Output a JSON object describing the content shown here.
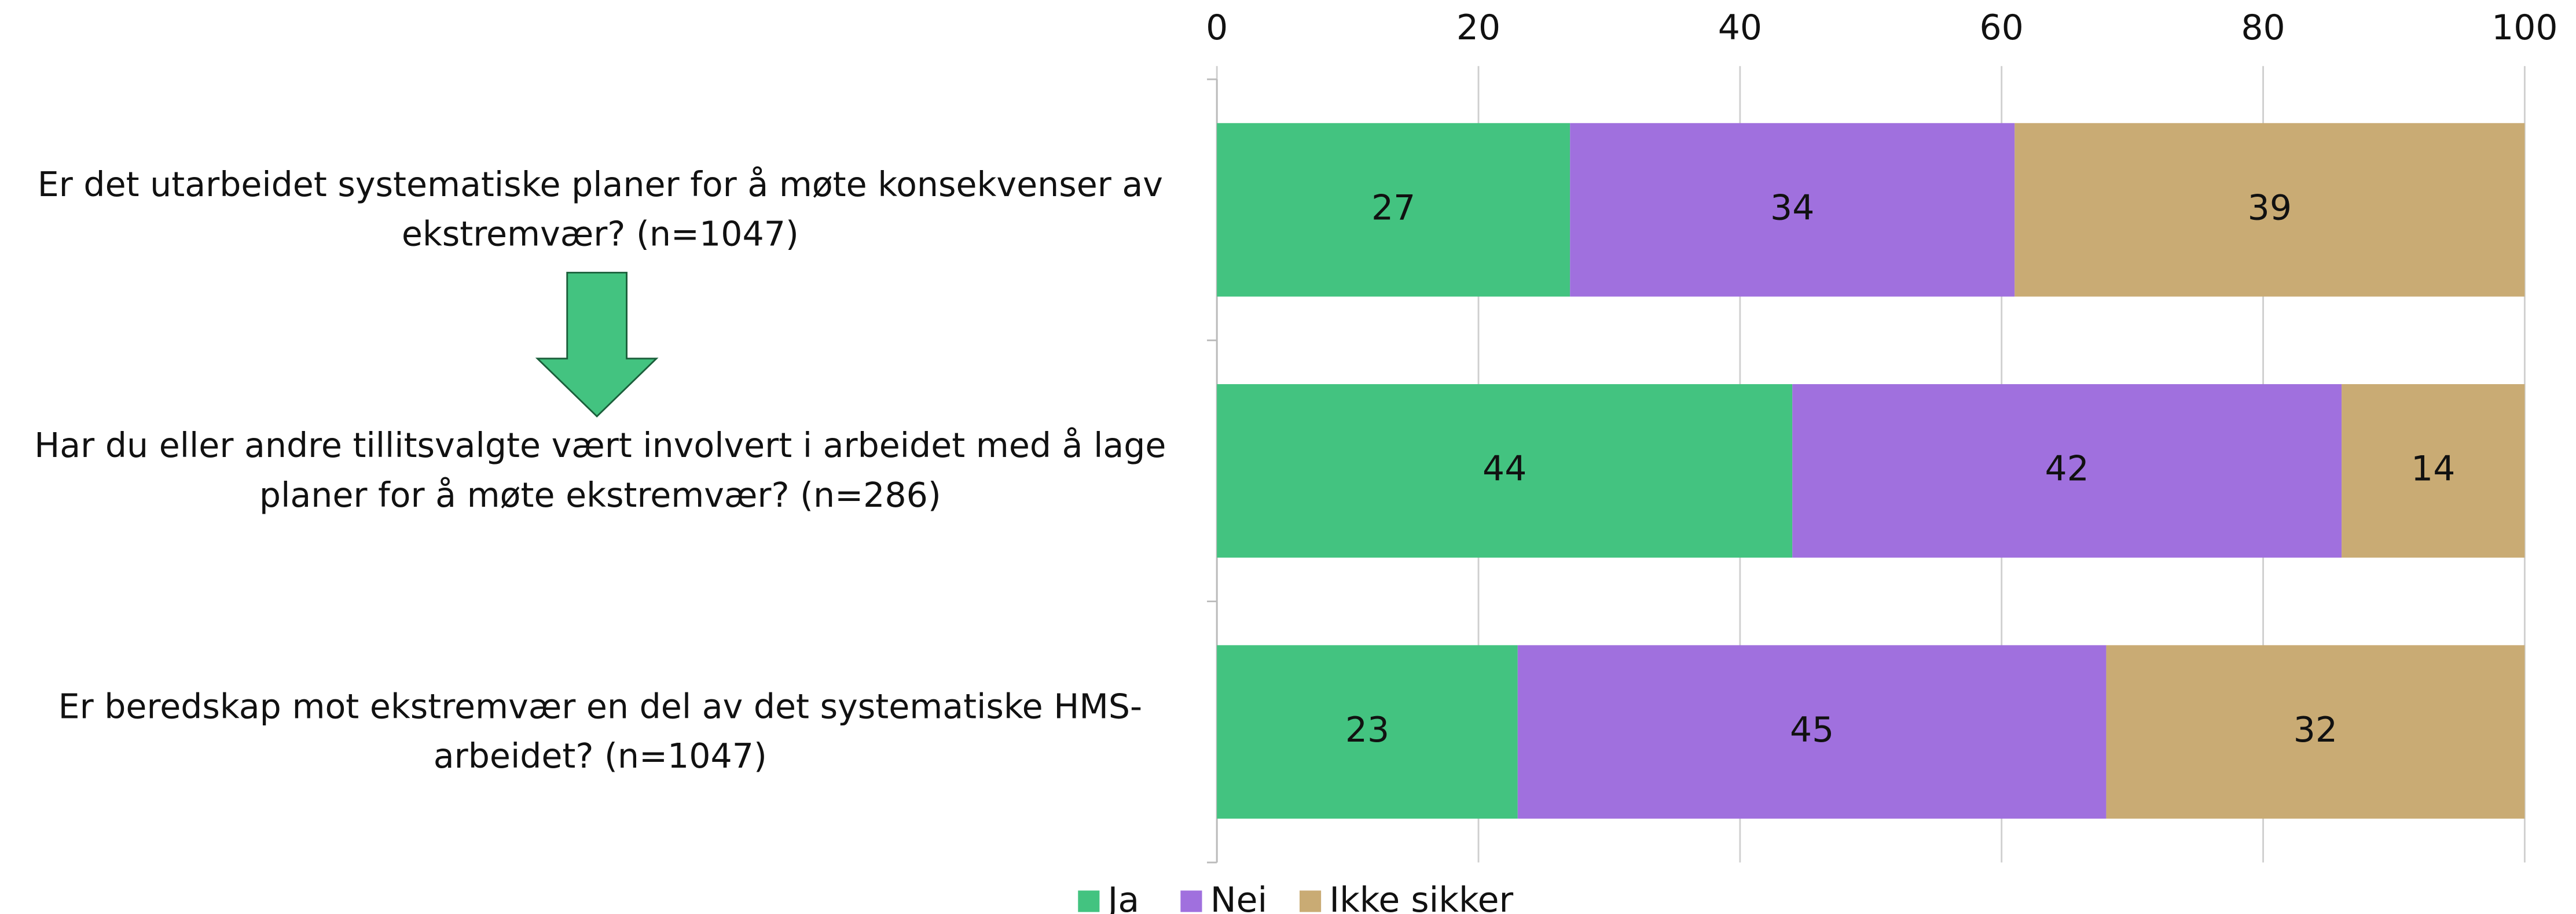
{
  "chart_data": {
    "type": "stacked-bar-horizontal",
    "categories": [
      [
        "Er det utarbeidet systematiske planer for å møte konsekvenser av",
        "ekstremvær? (n=1047)"
      ],
      [
        "Har du eller andre tillitsvalgte vært involvert i arbeidet med å lage",
        "planer for å møte ekstremvær? (n=286)"
      ],
      [
        "Er beredskap mot ekstremvær en del av det systematiske HMS-",
        "arbeidet? (n=1047)"
      ]
    ],
    "series": [
      {
        "name": "Ja",
        "color": "#43c380",
        "values": [
          27,
          44,
          23
        ]
      },
      {
        "name": "Nei",
        "color": "#a070de",
        "values": [
          34,
          42,
          45
        ]
      },
      {
        "name": "Ikke sikker",
        "color": "#c9ab74",
        "values": [
          39,
          14,
          32
        ]
      }
    ],
    "xlim": [
      0,
      100
    ],
    "xticks": [
      0,
      20,
      40,
      60,
      80,
      100
    ],
    "grid": true,
    "legend": "bottom"
  }
}
